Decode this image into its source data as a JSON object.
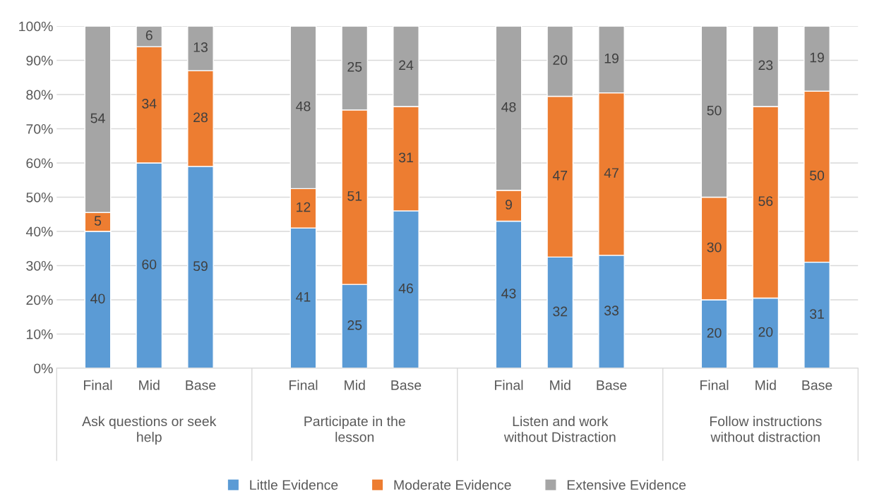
{
  "chart_data": {
    "type": "bar",
    "stacked": true,
    "categories": [
      "Final",
      "Mid",
      "Base",
      null,
      "Final",
      "Mid",
      "Base",
      null,
      "Final",
      "Mid",
      "Base",
      null,
      "Final",
      "Mid",
      "Base"
    ],
    "series": [
      {
        "name": "Little Evidence",
        "color": "#5b9bd5",
        "values": [
          40,
          60,
          59,
          null,
          41,
          24.5,
          46,
          null,
          43,
          32.5,
          33,
          null,
          20,
          20.5,
          31
        ],
        "value_labels": [
          "40",
          "60",
          "59",
          null,
          "41",
          "25",
          "46",
          null,
          "43",
          "32",
          "33",
          null,
          "20",
          "20",
          "31"
        ]
      },
      {
        "name": "Moderate Evidence",
        "color": "#ed7d31",
        "values": [
          5.5,
          34,
          28,
          null,
          11.5,
          51,
          30.5,
          null,
          9,
          47,
          47.5,
          null,
          30,
          56,
          50
        ],
        "value_labels": [
          "5",
          "34",
          "28",
          null,
          "12",
          "51",
          "31",
          null,
          "9",
          "47",
          "47",
          null,
          "30",
          "56",
          "50"
        ]
      },
      {
        "name": "Extensive Evidence",
        "color": "#a5a5a5",
        "values": [
          54.5,
          6,
          13,
          null,
          47.5,
          24.5,
          23.5,
          null,
          48,
          20.5,
          19.5,
          null,
          50,
          23.5,
          19
        ],
        "value_labels": [
          "54",
          "6",
          "13",
          null,
          "48",
          "25",
          "24",
          null,
          "48",
          "20",
          "19",
          null,
          "50",
          "23",
          "19"
        ]
      }
    ],
    "annotations": [
      "Ask questions or seek\nhelp",
      "Participate in the\nlesson",
      "Listen and work\nwithout Distraction",
      "Follow instructions\nwithout distraction"
    ],
    "ylim": [
      0,
      100
    ],
    "yticks": [
      {
        "value": 0,
        "label": "0%"
      },
      {
        "value": 10,
        "label": "10%"
      },
      {
        "value": 20,
        "label": "20%"
      },
      {
        "value": 30,
        "label": "30%"
      },
      {
        "value": 40,
        "label": "40%"
      },
      {
        "value": 50,
        "label": "50%"
      },
      {
        "value": 60,
        "label": "60%"
      },
      {
        "value": 70,
        "label": "70%"
      },
      {
        "value": 80,
        "label": "80%"
      },
      {
        "value": 90,
        "label": "90%"
      },
      {
        "value": 100,
        "label": "100%"
      }
    ],
    "grid": "y",
    "legend": "bottom"
  }
}
